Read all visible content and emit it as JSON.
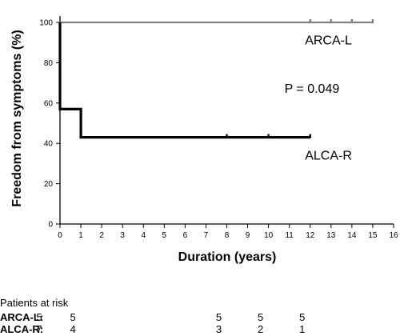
{
  "chart_data": {
    "type": "line",
    "step": true,
    "xlabel": "Duration (years)",
    "ylabel": "Freedom from symptoms (%)",
    "xlim": [
      0,
      16
    ],
    "ylim": [
      0,
      100
    ],
    "x_ticks": [
      0,
      1,
      2,
      3,
      4,
      5,
      6,
      7,
      8,
      9,
      10,
      11,
      12,
      13,
      14,
      15,
      16
    ],
    "y_ticks": [
      0,
      20,
      40,
      60,
      80,
      100
    ],
    "series": [
      {
        "name": "ARCA-L",
        "color": "#808080",
        "points": [
          [
            0,
            100
          ],
          [
            15,
            100
          ]
        ],
        "censored": [
          [
            12,
            100
          ],
          [
            13,
            100
          ],
          [
            14,
            100
          ],
          [
            15,
            100
          ]
        ]
      },
      {
        "name": "ALCA-R",
        "color": "#000000",
        "points": [
          [
            0,
            100
          ],
          [
            0,
            57
          ],
          [
            1,
            57
          ],
          [
            1,
            43
          ],
          [
            12,
            43
          ]
        ],
        "censored": [
          [
            8,
            43
          ],
          [
            10,
            43
          ],
          [
            12,
            43
          ]
        ]
      }
    ],
    "annotations": [
      {
        "text": "ARCA-L",
        "x": 14,
        "y": 89
      },
      {
        "text": "P = 0.049",
        "x": 13.4,
        "y": 65
      },
      {
        "text": "ALCA-R",
        "x": 14,
        "y": 32
      }
    ],
    "grid": false
  },
  "risk_table": {
    "title": "Patients at risk",
    "rows": [
      {
        "label": "ARCA-L",
        "suffix": ":",
        "values": [
          {
            "x": 0,
            "v": "5"
          },
          {
            "x": 1,
            "v": "5"
          },
          {
            "x": 8,
            "v": "5"
          },
          {
            "x": 10,
            "v": "5"
          },
          {
            "x": 12,
            "v": "5"
          }
        ]
      },
      {
        "label": "ALCA-R",
        "suffix": ":",
        "values": [
          {
            "x": 0,
            "v": "7"
          },
          {
            "x": 1,
            "v": "4"
          },
          {
            "x": 8,
            "v": "3"
          },
          {
            "x": 10,
            "v": "2"
          },
          {
            "x": 12,
            "v": "1"
          }
        ]
      }
    ]
  }
}
